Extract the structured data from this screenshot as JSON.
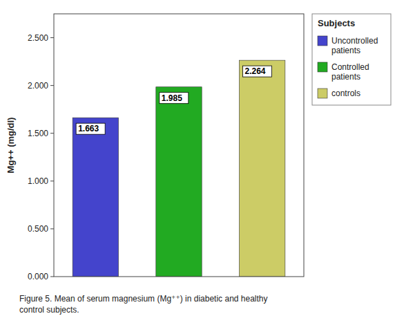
{
  "chart_data": {
    "type": "bar",
    "categories": [
      "Uncontrolled\npatients",
      "Controlled\npatients",
      "controls"
    ],
    "values": [
      1.663,
      1.985,
      2.264
    ],
    "colors": [
      "#4444cc",
      "#22aa22",
      "#cccc66"
    ],
    "y_label": "Mg++ (mg/dl)",
    "ylim": [
      0,
      2.75
    ],
    "yticks": [
      {
        "value": 0.0,
        "label": "0.000"
      },
      {
        "value": 0.5,
        "label": "0.500"
      },
      {
        "value": 1.0,
        "label": "1.000"
      },
      {
        "value": 1.5,
        "label": "1.500"
      },
      {
        "value": 2.0,
        "label": "2.000"
      },
      {
        "value": 2.5,
        "label": "2.500"
      }
    ],
    "data_labels": true,
    "tick_labels": "y",
    "grid": false,
    "legend": "right",
    "legend_title": "Subjects",
    "annotations": [
      "Figure 5. Mean of serum magnesium (Mg⁺⁺) in diabetic and healthy\ncontrol subjects."
    ]
  }
}
